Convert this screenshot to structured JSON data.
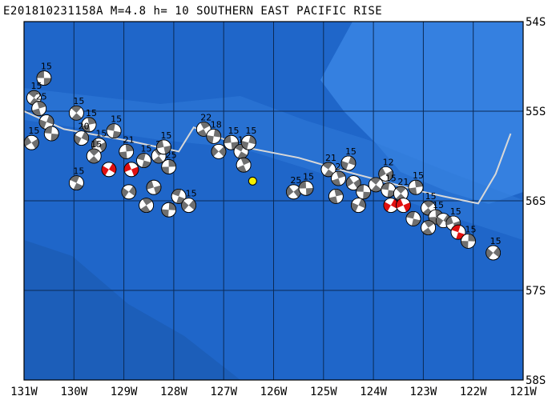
{
  "title": "E201810231158A  M=4.8  h= 10  SOUTHERN EAST PACIFIC RISE",
  "colors": {
    "ocean": "#1f66c9",
    "ocean_light": "#3580e0",
    "ridge_light": "#2f7ad8",
    "grid": "#0b2a55",
    "plate_boundary": "#d8d8d8",
    "compression": "#ffffff",
    "tension_default": "#6f6f6f",
    "tension_highlight": "#e01010",
    "event_marker": "#f5f000"
  },
  "axes": {
    "lon_labels": [
      "131W",
      "130W",
      "129W",
      "128W",
      "127W",
      "126W",
      "125W",
      "124W",
      "123W",
      "122W",
      "121W"
    ],
    "lat_labels": [
      "54S",
      "55S",
      "56S",
      "57S",
      "58S"
    ]
  },
  "event": {
    "lon": -126.42,
    "lat": -55.78,
    "name": "event-star"
  },
  "plate_boundary": [
    [
      -131.0,
      -55.0
    ],
    [
      -130.2,
      -55.2
    ],
    [
      -128.9,
      -55.33
    ],
    [
      -127.9,
      -55.45
    ],
    [
      -127.6,
      -55.18
    ],
    [
      -126.6,
      -55.4
    ],
    [
      -125.5,
      -55.52
    ],
    [
      -124.5,
      -55.68
    ],
    [
      -123.0,
      -55.9
    ],
    [
      -122.6,
      -55.95
    ],
    [
      -121.9,
      -56.03
    ],
    [
      -121.55,
      -55.7
    ],
    [
      -121.25,
      -55.25
    ]
  ],
  "mechanisms": [
    {
      "lon": -130.6,
      "lat": -54.63,
      "mag": "15",
      "hl": false
    },
    {
      "lon": -130.8,
      "lat": -54.85,
      "mag": "15",
      "hl": false
    },
    {
      "lon": -130.7,
      "lat": -54.97,
      "mag": "25",
      "hl": false
    },
    {
      "lon": -130.55,
      "lat": -55.12,
      "mag": "",
      "hl": false
    },
    {
      "lon": -130.85,
      "lat": -55.35,
      "mag": "15",
      "hl": false
    },
    {
      "lon": -130.45,
      "lat": -55.25,
      "mag": "",
      "hl": false
    },
    {
      "lon": -129.95,
      "lat": -55.02,
      "mag": "15",
      "hl": false
    },
    {
      "lon": -129.7,
      "lat": -55.15,
      "mag": "15",
      "hl": false
    },
    {
      "lon": -129.85,
      "lat": -55.3,
      "mag": "20",
      "hl": false
    },
    {
      "lon": -129.5,
      "lat": -55.38,
      "mag": "15",
      "hl": false
    },
    {
      "lon": -129.2,
      "lat": -55.22,
      "mag": "15",
      "hl": false
    },
    {
      "lon": -129.6,
      "lat": -55.5,
      "mag": "15",
      "hl": false
    },
    {
      "lon": -128.95,
      "lat": -55.45,
      "mag": "21",
      "hl": false
    },
    {
      "lon": -129.3,
      "lat": -55.65,
      "mag": "",
      "hl": true
    },
    {
      "lon": -128.85,
      "lat": -55.65,
      "mag": "",
      "hl": true
    },
    {
      "lon": -128.6,
      "lat": -55.55,
      "mag": "15",
      "hl": false
    },
    {
      "lon": -128.3,
      "lat": -55.5,
      "mag": "20",
      "hl": false
    },
    {
      "lon": -128.1,
      "lat": -55.62,
      "mag": "25",
      "hl": false
    },
    {
      "lon": -128.9,
      "lat": -55.9,
      "mag": "",
      "hl": false
    },
    {
      "lon": -128.4,
      "lat": -55.85,
      "mag": "",
      "hl": false
    },
    {
      "lon": -127.9,
      "lat": -55.95,
      "mag": "",
      "hl": false
    },
    {
      "lon": -128.55,
      "lat": -56.05,
      "mag": "",
      "hl": false
    },
    {
      "lon": -128.1,
      "lat": -56.1,
      "mag": "",
      "hl": false
    },
    {
      "lon": -127.7,
      "lat": -56.05,
      "mag": "15",
      "hl": false
    },
    {
      "lon": -128.2,
      "lat": -55.4,
      "mag": "15",
      "hl": false
    },
    {
      "lon": -129.95,
      "lat": -55.8,
      "mag": "15",
      "hl": false
    },
    {
      "lon": -127.4,
      "lat": -55.2,
      "mag": "22",
      "hl": false
    },
    {
      "lon": -127.2,
      "lat": -55.28,
      "mag": "18",
      "hl": false
    },
    {
      "lon": -127.1,
      "lat": -55.45,
      "mag": "",
      "hl": false
    },
    {
      "lon": -126.85,
      "lat": -55.35,
      "mag": "15",
      "hl": false
    },
    {
      "lon": -126.65,
      "lat": -55.45,
      "mag": "19",
      "hl": false
    },
    {
      "lon": -126.6,
      "lat": -55.6,
      "mag": "",
      "hl": false
    },
    {
      "lon": -126.5,
      "lat": -55.35,
      "mag": "15",
      "hl": false
    },
    {
      "lon": -125.6,
      "lat": -55.9,
      "mag": "25",
      "hl": false
    },
    {
      "lon": -125.35,
      "lat": -55.86,
      "mag": "15",
      "hl": false
    },
    {
      "lon": -124.9,
      "lat": -55.65,
      "mag": "21",
      "hl": false
    },
    {
      "lon": -124.7,
      "lat": -55.75,
      "mag": "25",
      "hl": false
    },
    {
      "lon": -124.5,
      "lat": -55.58,
      "mag": "15",
      "hl": false
    },
    {
      "lon": -124.4,
      "lat": -55.8,
      "mag": "",
      "hl": false
    },
    {
      "lon": -124.2,
      "lat": -55.9,
      "mag": "",
      "hl": false
    },
    {
      "lon": -123.95,
      "lat": -55.82,
      "mag": "",
      "hl": false
    },
    {
      "lon": -124.75,
      "lat": -55.95,
      "mag": "",
      "hl": false
    },
    {
      "lon": -124.3,
      "lat": -56.05,
      "mag": "",
      "hl": false
    },
    {
      "lon": -123.75,
      "lat": -55.7,
      "mag": "12",
      "hl": false
    },
    {
      "lon": -123.7,
      "lat": -55.88,
      "mag": "15",
      "hl": false
    },
    {
      "lon": -123.45,
      "lat": -55.92,
      "mag": "21",
      "hl": false
    },
    {
      "lon": -123.15,
      "lat": -55.85,
      "mag": "15",
      "hl": false
    },
    {
      "lon": -123.65,
      "lat": -56.05,
      "mag": "",
      "hl": true
    },
    {
      "lon": -123.4,
      "lat": -56.05,
      "mag": "",
      "hl": true
    },
    {
      "lon": -123.2,
      "lat": -56.2,
      "mag": "",
      "hl": false
    },
    {
      "lon": -122.9,
      "lat": -56.08,
      "mag": "15",
      "hl": false
    },
    {
      "lon": -122.75,
      "lat": -56.18,
      "mag": "15",
      "hl": false
    },
    {
      "lon": -122.6,
      "lat": -56.22,
      "mag": "",
      "hl": false
    },
    {
      "lon": -122.4,
      "lat": -56.25,
      "mag": "15",
      "hl": false
    },
    {
      "lon": -122.3,
      "lat": -56.35,
      "mag": "",
      "hl": true
    },
    {
      "lon": -122.9,
      "lat": -56.3,
      "mag": "",
      "hl": false
    },
    {
      "lon": -122.1,
      "lat": -56.45,
      "mag": "15",
      "hl": false
    },
    {
      "lon": -121.6,
      "lat": -56.58,
      "mag": "15",
      "hl": false
    }
  ]
}
